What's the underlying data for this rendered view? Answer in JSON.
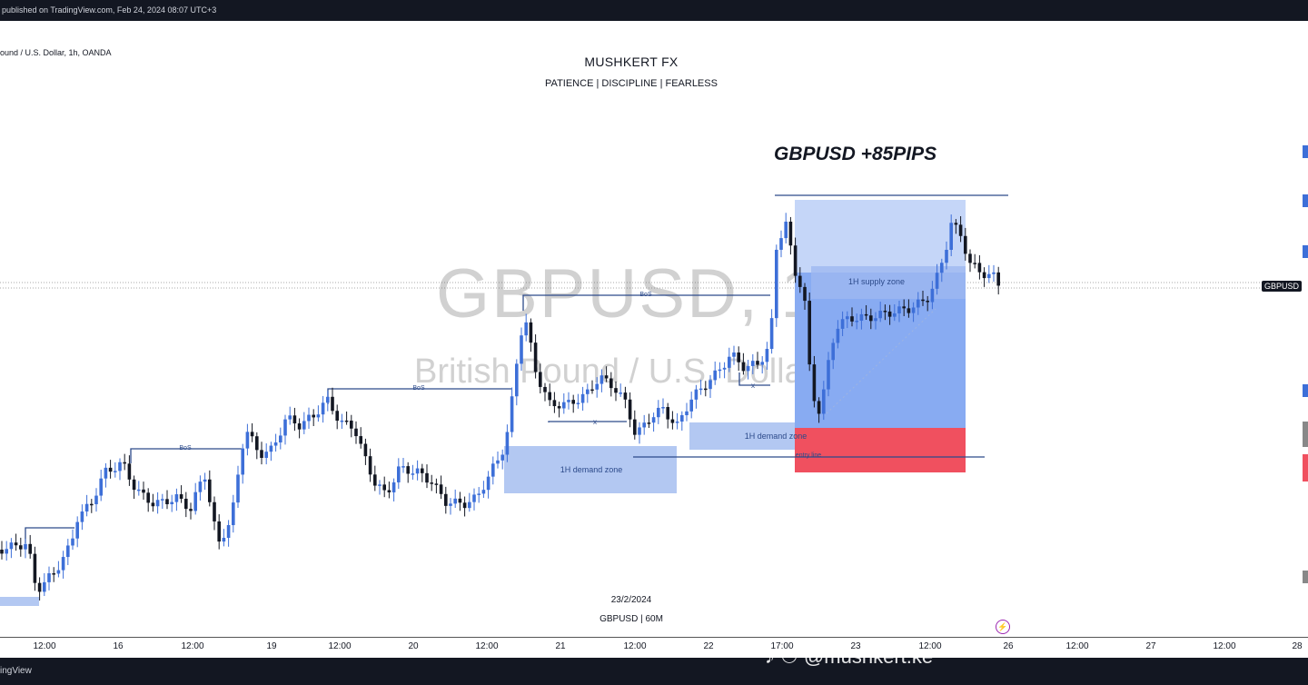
{
  "header": {
    "published": "published on TradingView.com, Feb 24, 2024 08:07 UTC+3",
    "symbol_line": "ound / U.S. Dollar, 1h, OANDA"
  },
  "branding": {
    "title": "MUSHKERT FX",
    "motto": "PATIENCE   |   DISCIPLINE   |   FEARLESS",
    "result": "GBPUSD +85PIPS"
  },
  "watermark": {
    "symbol": "GBPUSD, 1h",
    "name": "British Pound / U.S. Dollar"
  },
  "footer": {
    "date": "23/2/2024",
    "symbol_tf": "GBPUSD | 60M",
    "tradingview": "ingView",
    "tiktok": "♪ ⚇ @mushkert.ke"
  },
  "price_tag": "GBPUSD",
  "annotations": {
    "bos": [
      "BoS",
      "BoS",
      "BoS"
    ],
    "demand_zone_1": "1H demand zone",
    "demand_zone_2": "1H demand zone",
    "supply_zone": "1H supply zone",
    "entry_label": "entry line",
    "x_marks": [
      "x",
      "x"
    ]
  },
  "xaxis": {
    "ticks": [
      "12:00",
      "16",
      "12:00",
      "19",
      "12:00",
      "20",
      "12:00",
      "21",
      "12:00",
      "22",
      "17:00",
      "23",
      "12:00",
      "26",
      "12:00",
      "27",
      "12:00",
      "28"
    ]
  },
  "colors": {
    "bull": "#3d6fd8",
    "bear": "#131722",
    "zone_blue": "#b3c8f2",
    "tp_blue": "#6f9af0",
    "sl_red": "#f0505f",
    "structure": "#2c4a8a"
  }
}
